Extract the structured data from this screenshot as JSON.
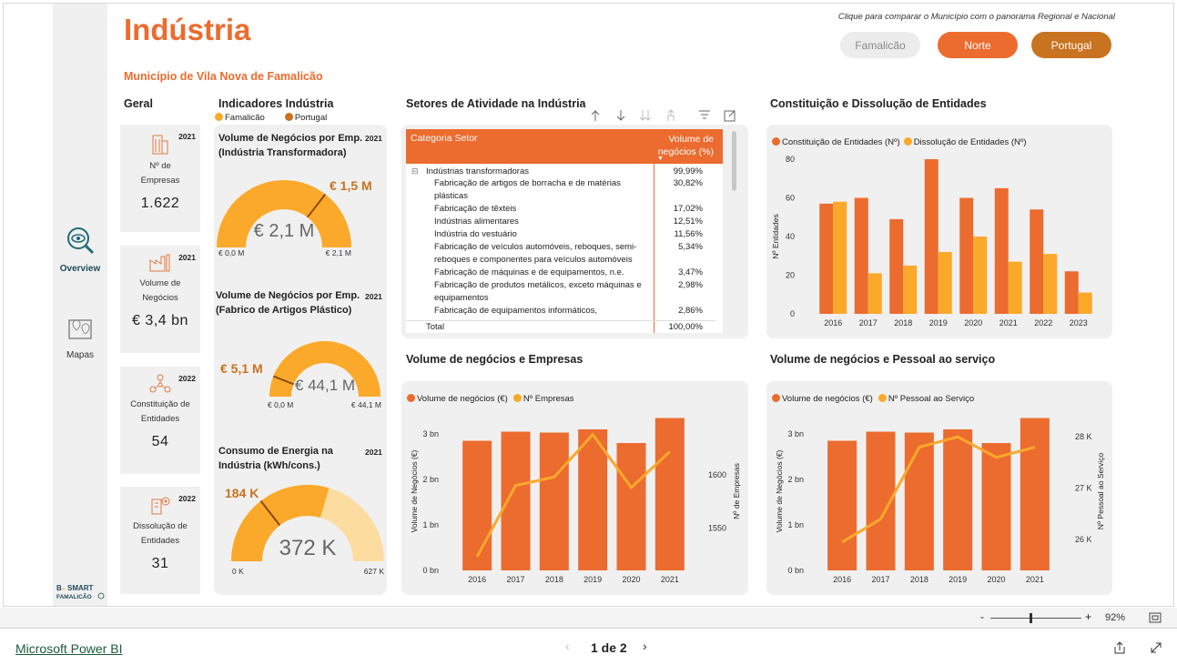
{
  "header": {
    "title": "Indústria",
    "subtitle": "Município de Vila Nova de Famalicão",
    "hint": "Clique para comparar o Município com o panorama Regional e Nacional",
    "buttons": [
      {
        "label": "Famalicão"
      },
      {
        "label": "Norte"
      },
      {
        "label": "Portugal"
      }
    ]
  },
  "nav": {
    "items": [
      {
        "label": "Overview"
      },
      {
        "label": "Mapas"
      }
    ],
    "logo_text": "B SMART FAMALICÃO"
  },
  "geral": {
    "title": "Geral",
    "cards": [
      {
        "year": "2021",
        "label": "Nº de Empresas",
        "value": "1.622",
        "icon": "buildings-icon"
      },
      {
        "year": "2021",
        "label": "Volume de Negócios",
        "value": "€ 3,4 bn",
        "icon": "factory-icon"
      },
      {
        "year": "2022",
        "label": "Constituição de Entidades",
        "value": "54",
        "icon": "network-icon"
      },
      {
        "year": "2022",
        "label": "Dissolução de Entidades",
        "value": "31",
        "icon": "building-gear-icon"
      }
    ]
  },
  "indicadores": {
    "title": "Indicadores Indústria",
    "legend": [
      {
        "name": "Famalicão",
        "color": "#fba92b"
      },
      {
        "name": "Portugal",
        "color": "#c8731f"
      }
    ],
    "gauges": [
      {
        "title": "Volume de Negócios por Emp. (Indústria Transformadora)",
        "year": "2021",
        "value": "€ 2,1 M",
        "target": "€ 1,5 M",
        "min": "€ 0,0 M",
        "max": "€ 2,1 M",
        "fill": 1.0,
        "target_frac": 0.71
      },
      {
        "title": "Volume de Negócios por Emp. (Fabrico de Artigos Plástico)",
        "year": "2021",
        "value": "€ 44,1 M",
        "target": "€ 5,1 M",
        "min": "€ 0,0 M",
        "max": "€ 44,1 M",
        "fill": 1.0,
        "target_frac": 0.12
      },
      {
        "title": "Consumo de Energia na Indústria (kWh/cons.)",
        "year": "2021",
        "value": "372 K",
        "target": "184 K",
        "min": "0 K",
        "max": "627 K",
        "fill": 0.59,
        "target_frac": 0.29
      }
    ]
  },
  "setores": {
    "title": "Setores de Atividade na Indústria",
    "col1": "Categoria Setor",
    "col2": "Volume de negócios (%)",
    "rows": [
      {
        "name": "Indústrias transformadoras",
        "pct": "99,99%",
        "indent": false
      },
      {
        "name": "Fabricação de artigos de borracha e de matérias plásticas",
        "pct": "30,82%",
        "indent": true
      },
      {
        "name": "Fabricação de têxteis",
        "pct": "17,02%",
        "indent": true
      },
      {
        "name": "Indústrias alimentares",
        "pct": "12,51%",
        "indent": true
      },
      {
        "name": "Indústria do vestuário",
        "pct": "11,56%",
        "indent": true
      },
      {
        "name": "Fabricação de veículos automóveis, reboques, semi-reboques e componentes para veículos automóveis",
        "pct": "5,34%",
        "indent": true
      },
      {
        "name": "Fabricação de máquinas e de equipamentos, n.e.",
        "pct": "3,47%",
        "indent": true
      },
      {
        "name": "Fabricação de produtos metálicos, exceto máquinas e equipamentos",
        "pct": "2,98%",
        "indent": true
      },
      {
        "name": "Fabricação de equipamentos informáticos,",
        "pct": "2,86%",
        "indent": true
      }
    ],
    "total_label": "Total",
    "total_value": "100,00%"
  },
  "chart_data": [
    {
      "type": "bar",
      "title": "Constituição e Dissolução de Entidades",
      "ylabel": "Nº Entidades",
      "ylim": [
        0,
        80
      ],
      "yticks": [
        "0",
        "20",
        "40",
        "60",
        "80"
      ],
      "categories": [
        "2016",
        "2017",
        "2018",
        "2019",
        "2020",
        "2021",
        "2022",
        "2023"
      ],
      "series": [
        {
          "name": "Constituição de Entidades (Nº)",
          "color": "#ec6b2e",
          "values": [
            57,
            60,
            49,
            80,
            60,
            65,
            54,
            22
          ]
        },
        {
          "name": "Dissolução de Entidades (Nº)",
          "color": "#fba92b",
          "values": [
            58,
            21,
            25,
            32,
            40,
            27,
            31,
            11
          ]
        }
      ]
    },
    {
      "type": "bar",
      "title": "Volume de negócios e Empresas",
      "ylabel": "Volume de Negócios (€)",
      "y2label": "Nº de Empresas",
      "yticks": [
        "0 bn",
        "1 bn",
        "2 bn",
        "3 bn"
      ],
      "y2ticks": [
        "1550",
        "1600"
      ],
      "ylim": [
        0,
        3.5
      ],
      "y2lim": [
        1510,
        1660
      ],
      "categories": [
        "2016",
        "2017",
        "2018",
        "2019",
        "2020",
        "2021"
      ],
      "series": [
        {
          "name": "Volume de negócios (€)",
          "color": "#ec6b2e",
          "values": [
            2.85,
            3.05,
            3.03,
            3.1,
            2.8,
            3.35
          ]
        },
        {
          "name": "Nº Empresas",
          "color": "#fba92b",
          "type": "line",
          "values": [
            1523,
            1590,
            1598,
            1638,
            1588,
            1622
          ]
        }
      ]
    },
    {
      "type": "bar",
      "title": "Volume de negócios e Pessoal ao serviço",
      "ylabel": "Volume de Negócios (€)",
      "y2label": "Nº Pessoal ao Serviço",
      "yticks": [
        "0 bn",
        "1 bn",
        "2 bn",
        "3 bn"
      ],
      "y2ticks": [
        "26 K",
        "27 K",
        "28 K"
      ],
      "ylim": [
        0,
        3.5
      ],
      "y2lim": [
        25.4,
        28.5
      ],
      "categories": [
        "2016",
        "2017",
        "2018",
        "2019",
        "2020",
        "2021"
      ],
      "series": [
        {
          "name": "Volume de negócios (€)",
          "color": "#ec6b2e",
          "values": [
            2.85,
            3.05,
            3.03,
            3.1,
            2.8,
            3.35
          ]
        },
        {
          "name": "Nº Pessoal ao Serviço",
          "color": "#fba92b",
          "type": "line",
          "values": [
            25.95,
            26.4,
            27.8,
            28.0,
            27.6,
            27.8
          ]
        }
      ]
    }
  ],
  "footer": {
    "brand": "Microsoft Power BI",
    "page": "1 de 2",
    "zoom": "92%"
  }
}
